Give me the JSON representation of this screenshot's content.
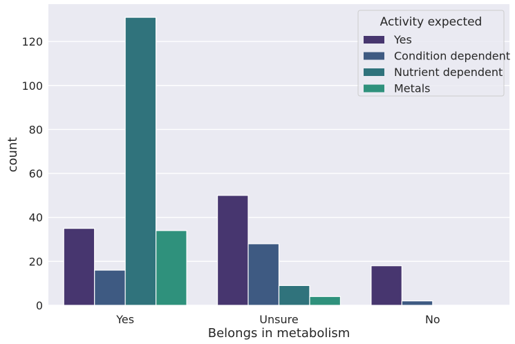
{
  "chart_data": {
    "type": "bar",
    "categories": [
      "Yes",
      "Unsure",
      "No"
    ],
    "series": [
      {
        "name": "Yes",
        "values": [
          35,
          50,
          18
        ],
        "color": "#47366f"
      },
      {
        "name": "Condition dependent",
        "values": [
          16,
          28,
          2
        ],
        "color": "#3e5a82"
      },
      {
        "name": "Nutrient dependent",
        "values": [
          131,
          9,
          0
        ],
        "color": "#30737c"
      },
      {
        "name": "Metals",
        "values": [
          34,
          4,
          0
        ],
        "color": "#2f917c"
      }
    ],
    "xlabel": "Belongs in metabolism",
    "ylabel": "count",
    "ylim": [
      0,
      137
    ],
    "yticks": [
      0,
      20,
      40,
      60,
      80,
      100,
      120
    ],
    "grid": true,
    "legend": {
      "title": "Activity expected",
      "position": "top-right"
    },
    "background": "#eaeaf2"
  }
}
